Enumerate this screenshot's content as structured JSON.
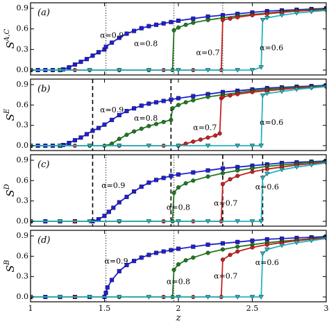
{
  "chart_data": [
    {
      "type": "line",
      "panel_label": "(a)",
      "ylabel": "S",
      "ylabel_sup": "A,C",
      "xlim": [
        1,
        3
      ],
      "ylim": [
        0,
        0.9
      ],
      "yticks": [
        0.0,
        0.3,
        0.6,
        0.9
      ],
      "vlines": [
        {
          "x": 1.51,
          "style": "dotted"
        },
        {
          "x": 1.97,
          "style": "dotted"
        },
        {
          "x": 2.3,
          "style": "dotted"
        }
      ],
      "series": [
        {
          "name": "α=0.9",
          "color": "#1f1fd6",
          "marker": "square",
          "x": [
            1.0,
            1.05,
            1.1,
            1.15,
            1.2,
            1.22,
            1.26,
            1.3,
            1.34,
            1.38,
            1.42,
            1.46,
            1.5,
            1.51,
            1.55,
            1.6,
            1.65,
            1.7,
            1.75,
            1.8,
            1.85,
            1.9,
            1.95,
            2.0,
            2.1,
            2.2,
            2.3,
            2.4,
            2.5,
            2.6,
            2.7,
            2.8,
            2.9,
            3.0
          ],
          "y": [
            0,
            0,
            0,
            0,
            0,
            0.01,
            0.04,
            0.08,
            0.12,
            0.16,
            0.21,
            0.26,
            0.3,
            0.34,
            0.4,
            0.47,
            0.53,
            0.57,
            0.61,
            0.64,
            0.66,
            0.68,
            0.7,
            0.72,
            0.75,
            0.78,
            0.8,
            0.82,
            0.84,
            0.86,
            0.87,
            0.88,
            0.89,
            0.9
          ]
        },
        {
          "name": "α=0.8",
          "color": "#1e7a1e",
          "marker": "circle",
          "x": [
            1.0,
            1.2,
            1.4,
            1.6,
            1.8,
            1.96,
            1.97,
            2.0,
            2.05,
            2.1,
            2.2,
            2.3,
            2.4,
            2.5,
            2.6,
            2.7,
            2.8,
            2.9,
            3.0
          ],
          "y": [
            0,
            0,
            0,
            0,
            0,
            0,
            0.58,
            0.62,
            0.66,
            0.69,
            0.73,
            0.76,
            0.79,
            0.81,
            0.83,
            0.85,
            0.87,
            0.88,
            0.89
          ]
        },
        {
          "name": "α=0.7",
          "color": "#c81e1e",
          "marker": "circle",
          "x": [
            1.0,
            1.3,
            1.6,
            1.9,
            2.1,
            2.29,
            2.3,
            2.35,
            2.4,
            2.5,
            2.6,
            2.7,
            2.8,
            2.9,
            3.0
          ],
          "y": [
            0,
            0,
            0,
            0,
            0,
            0,
            0.73,
            0.75,
            0.77,
            0.8,
            0.82,
            0.84,
            0.86,
            0.87,
            0.88
          ]
        },
        {
          "name": "α=0.6",
          "color": "#23b5c0",
          "marker": "triangle",
          "x": [
            1.0,
            1.2,
            1.4,
            1.6,
            1.8,
            2.0,
            2.2,
            2.4,
            2.5,
            2.56,
            2.57,
            2.6,
            2.7,
            2.8,
            2.9,
            3.0
          ],
          "y": [
            0,
            0,
            0,
            0,
            0,
            0,
            0,
            0,
            0,
            0.04,
            0.73,
            0.76,
            0.8,
            0.83,
            0.85,
            0.87
          ]
        }
      ],
      "annotations": [
        {
          "text": "α=0.9",
          "x": 1.55,
          "y": 0.5
        },
        {
          "text": "α=0.8",
          "x": 1.78,
          "y": 0.38
        },
        {
          "text": "α=0.7",
          "x": 2.2,
          "y": 0.25
        },
        {
          "text": "α=0.6",
          "x": 2.63,
          "y": 0.32
        }
      ]
    },
    {
      "type": "line",
      "panel_label": "(b)",
      "ylabel": "S",
      "ylabel_sup": "E",
      "xlim": [
        1,
        3
      ],
      "ylim": [
        0,
        0.9
      ],
      "yticks": [
        0.0,
        0.3,
        0.6,
        0.9
      ],
      "vlines": [
        {
          "x": 1.42,
          "style": "dashed"
        },
        {
          "x": 1.95,
          "style": "dashed"
        }
      ],
      "series": [
        {
          "name": "α=0.9",
          "color": "#1f1fd6",
          "marker": "square",
          "x": [
            1.0,
            1.05,
            1.1,
            1.15,
            1.2,
            1.22,
            1.26,
            1.3,
            1.34,
            1.38,
            1.42,
            1.46,
            1.5,
            1.55,
            1.6,
            1.65,
            1.7,
            1.75,
            1.8,
            1.85,
            1.9,
            1.95,
            2.0,
            2.1,
            2.2,
            2.3,
            2.4,
            2.5,
            2.6,
            2.7,
            2.8,
            2.9,
            3.0
          ],
          "y": [
            0,
            0,
            0,
            0,
            0,
            0.01,
            0.04,
            0.08,
            0.12,
            0.17,
            0.22,
            0.26,
            0.31,
            0.38,
            0.45,
            0.51,
            0.55,
            0.59,
            0.62,
            0.64,
            0.66,
            0.68,
            0.7,
            0.73,
            0.76,
            0.79,
            0.81,
            0.83,
            0.85,
            0.86,
            0.87,
            0.88,
            0.89
          ]
        },
        {
          "name": "α=0.8",
          "color": "#1e7a1e",
          "marker": "circle",
          "x": [
            1.0,
            1.2,
            1.4,
            1.5,
            1.55,
            1.6,
            1.65,
            1.7,
            1.75,
            1.8,
            1.85,
            1.9,
            1.95,
            1.96,
            2.0,
            2.05,
            2.1,
            2.2,
            2.3,
            2.4,
            2.5,
            2.6,
            2.7,
            2.8,
            2.9,
            3.0
          ],
          "y": [
            0,
            0,
            0,
            0,
            0.03,
            0.1,
            0.16,
            0.21,
            0.25,
            0.29,
            0.32,
            0.35,
            0.38,
            0.55,
            0.6,
            0.64,
            0.67,
            0.72,
            0.75,
            0.78,
            0.81,
            0.83,
            0.85,
            0.86,
            0.87,
            0.88
          ]
        },
        {
          "name": "α=0.7",
          "color": "#c81e1e",
          "marker": "circle",
          "x": [
            1.0,
            1.3,
            1.6,
            1.9,
            2.0,
            2.05,
            2.1,
            2.15,
            2.2,
            2.25,
            2.28,
            2.29,
            2.3,
            2.35,
            2.4,
            2.5,
            2.6,
            2.7,
            2.8,
            2.9,
            3.0
          ],
          "y": [
            0,
            0,
            0,
            0,
            0,
            0.03,
            0.06,
            0.09,
            0.12,
            0.15,
            0.18,
            0.7,
            0.72,
            0.74,
            0.76,
            0.79,
            0.81,
            0.83,
            0.85,
            0.86,
            0.87
          ]
        },
        {
          "name": "α=0.6",
          "color": "#23b5c0",
          "marker": "triangle",
          "x": [
            1.0,
            1.2,
            1.4,
            1.6,
            1.8,
            2.0,
            2.2,
            2.4,
            2.5,
            2.56,
            2.57,
            2.6,
            2.7,
            2.8,
            2.9,
            3.0
          ],
          "y": [
            0,
            0,
            0,
            0,
            0,
            0,
            0,
            0,
            0,
            0,
            0.74,
            0.77,
            0.8,
            0.83,
            0.85,
            0.87
          ]
        }
      ],
      "annotations": [
        {
          "text": "α=0.9",
          "x": 1.55,
          "y": 0.52
        },
        {
          "text": "α=0.8",
          "x": 1.78,
          "y": 0.4
        },
        {
          "text": "α=0.7",
          "x": 2.18,
          "y": 0.26
        },
        {
          "text": "α=0.6",
          "x": 2.63,
          "y": 0.34
        }
      ]
    },
    {
      "type": "line",
      "panel_label": "(c)",
      "ylabel": "S",
      "ylabel_sup": "D",
      "xlim": [
        1,
        3
      ],
      "ylim": [
        0,
        0.9
      ],
      "yticks": [
        0.0,
        0.3,
        0.6,
        0.9
      ],
      "vlines": [
        {
          "x": 1.42,
          "style": "dashed"
        },
        {
          "x": 1.51,
          "style": "dotted"
        },
        {
          "x": 1.95,
          "style": "dashed"
        },
        {
          "x": 1.97,
          "style": "dotted"
        },
        {
          "x": 2.3,
          "style": "dashed"
        },
        {
          "x": 2.57,
          "style": "dashed"
        }
      ],
      "series": [
        {
          "name": "α=0.9",
          "color": "#1f1fd6",
          "marker": "square",
          "x": [
            1.0,
            1.1,
            1.2,
            1.3,
            1.42,
            1.46,
            1.5,
            1.53,
            1.56,
            1.6,
            1.65,
            1.7,
            1.75,
            1.8,
            1.85,
            1.9,
            1.95,
            2.0,
            2.1,
            2.2,
            2.3,
            2.4,
            2.5,
            2.6,
            2.7,
            2.8,
            2.9,
            3.0
          ],
          "y": [
            0,
            0,
            0,
            0,
            0,
            0.03,
            0.08,
            0.14,
            0.2,
            0.28,
            0.36,
            0.44,
            0.51,
            0.57,
            0.61,
            0.64,
            0.67,
            0.69,
            0.72,
            0.75,
            0.78,
            0.8,
            0.82,
            0.84,
            0.86,
            0.87,
            0.88,
            0.89
          ]
        },
        {
          "name": "α=0.8",
          "color": "#1e7a1e",
          "marker": "circle",
          "x": [
            1.0,
            1.3,
            1.6,
            1.9,
            1.96,
            1.97,
            2.0,
            2.05,
            2.1,
            2.2,
            2.3,
            2.4,
            2.5,
            2.6,
            2.7,
            2.8,
            2.9,
            3.0
          ],
          "y": [
            0,
            0,
            0,
            0,
            0,
            0.42,
            0.5,
            0.56,
            0.6,
            0.66,
            0.71,
            0.75,
            0.78,
            0.81,
            0.83,
            0.85,
            0.87,
            0.88
          ]
        },
        {
          "name": "α=0.7",
          "color": "#c81e1e",
          "marker": "circle",
          "x": [
            1.0,
            1.3,
            1.6,
            1.9,
            2.1,
            2.29,
            2.3,
            2.35,
            2.4,
            2.5,
            2.6,
            2.7,
            2.8,
            2.9,
            3.0
          ],
          "y": [
            0,
            0,
            0,
            0,
            0,
            0,
            0.55,
            0.62,
            0.67,
            0.73,
            0.77,
            0.8,
            0.83,
            0.85,
            0.87
          ]
        },
        {
          "name": "α=0.6",
          "color": "#23b5c0",
          "marker": "triangle",
          "x": [
            1.0,
            1.2,
            1.4,
            1.6,
            1.8,
            2.0,
            2.2,
            2.4,
            2.5,
            2.56,
            2.57,
            2.6,
            2.7,
            2.8,
            2.9,
            3.0
          ],
          "y": [
            0,
            0,
            0,
            0,
            0,
            0,
            0,
            0,
            0,
            0,
            0.64,
            0.7,
            0.76,
            0.8,
            0.83,
            0.86
          ]
        }
      ],
      "annotations": [
        {
          "text": "α=0.9",
          "x": 1.56,
          "y": 0.52
        },
        {
          "text": "α=0.8",
          "x": 2.0,
          "y": 0.2
        },
        {
          "text": "α=0.7",
          "x": 2.32,
          "y": 0.26
        },
        {
          "text": "α=0.6",
          "x": 2.6,
          "y": 0.5
        }
      ]
    },
    {
      "type": "line",
      "panel_label": "(d)",
      "ylabel": "S",
      "ylabel_sup": "B",
      "xlim": [
        1,
        3
      ],
      "ylim": [
        0,
        0.9
      ],
      "xticks": [
        1,
        1.5,
        2,
        2.5,
        3
      ],
      "xlabel": "z",
      "yticks": [
        0.0,
        0.3,
        0.6,
        0.9
      ],
      "vlines": [
        {
          "x": 1.51,
          "style": "dotted"
        },
        {
          "x": 1.97,
          "style": "dotted"
        }
      ],
      "series": [
        {
          "name": "α=0.9",
          "color": "#1f1fd6",
          "marker": "square",
          "x": [
            1.0,
            1.1,
            1.2,
            1.3,
            1.4,
            1.5,
            1.51,
            1.52,
            1.55,
            1.6,
            1.65,
            1.7,
            1.75,
            1.8,
            1.85,
            1.9,
            1.95,
            2.0,
            2.1,
            2.2,
            2.3,
            2.4,
            2.5,
            2.6,
            2.7,
            2.8,
            2.9,
            3.0
          ],
          "y": [
            0,
            0,
            0,
            0,
            0,
            0,
            0.06,
            0.14,
            0.25,
            0.38,
            0.47,
            0.53,
            0.58,
            0.62,
            0.65,
            0.67,
            0.69,
            0.71,
            0.74,
            0.77,
            0.79,
            0.81,
            0.83,
            0.85,
            0.86,
            0.87,
            0.88,
            0.89
          ]
        },
        {
          "name": "α=0.8",
          "color": "#1e7a1e",
          "marker": "circle",
          "x": [
            1.0,
            1.3,
            1.6,
            1.9,
            1.96,
            1.97,
            2.0,
            2.05,
            2.1,
            2.2,
            2.3,
            2.4,
            2.5,
            2.6,
            2.7,
            2.8,
            2.9,
            3.0
          ],
          "y": [
            0,
            0,
            0,
            0,
            0,
            0.4,
            0.48,
            0.54,
            0.58,
            0.65,
            0.7,
            0.74,
            0.77,
            0.8,
            0.82,
            0.84,
            0.86,
            0.88
          ]
        },
        {
          "name": "α=0.7",
          "color": "#c81e1e",
          "marker": "circle",
          "x": [
            1.0,
            1.3,
            1.6,
            1.9,
            2.1,
            2.29,
            2.3,
            2.35,
            2.4,
            2.5,
            2.6,
            2.7,
            2.8,
            2.9,
            3.0
          ],
          "y": [
            0,
            0,
            0,
            0,
            0,
            0,
            0.55,
            0.62,
            0.67,
            0.73,
            0.77,
            0.8,
            0.83,
            0.85,
            0.87
          ]
        },
        {
          "name": "α=0.6",
          "color": "#23b5c0",
          "marker": "triangle",
          "x": [
            1.0,
            1.2,
            1.4,
            1.6,
            1.8,
            2.0,
            2.2,
            2.4,
            2.5,
            2.56,
            2.57,
            2.6,
            2.7,
            2.8,
            2.9,
            3.0
          ],
          "y": [
            0,
            0,
            0,
            0,
            0,
            0,
            0,
            0,
            0,
            0,
            0.64,
            0.7,
            0.76,
            0.8,
            0.83,
            0.86
          ]
        }
      ],
      "annotations": [
        {
          "text": "α=0.9",
          "x": 1.58,
          "y": 0.52
        },
        {
          "text": "α=0.8",
          "x": 2.0,
          "y": 0.22
        },
        {
          "text": "α=0.7",
          "x": 2.32,
          "y": 0.3
        },
        {
          "text": "α=0.6",
          "x": 2.6,
          "y": 0.5
        }
      ]
    }
  ]
}
